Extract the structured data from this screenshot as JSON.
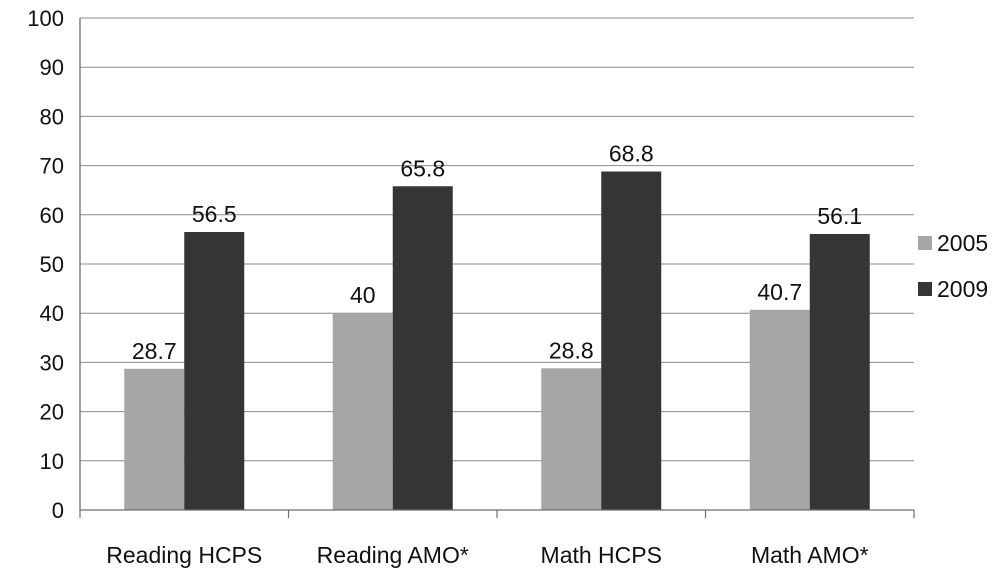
{
  "chart_data": {
    "type": "bar",
    "categories": [
      "Reading HCPS",
      "Reading AMO*",
      "Math HCPS",
      "Math AMO*"
    ],
    "series": [
      {
        "name": "2005",
        "values": [
          28.7,
          40,
          28.8,
          40.7
        ],
        "labels": [
          "28.7",
          "40",
          "28.8",
          "40.7"
        ],
        "color": "#a6a6a6"
      },
      {
        "name": "2009",
        "values": [
          56.5,
          65.8,
          68.8,
          56.1
        ],
        "labels": [
          "56.5",
          "65.8",
          "68.8",
          "56.1"
        ],
        "color": "#353535"
      }
    ],
    "title": "",
    "xlabel": "",
    "ylabel": "",
    "ylim": [
      0,
      100
    ],
    "yticks": [
      "0",
      "10",
      "20",
      "30",
      "40",
      "50",
      "60",
      "70",
      "80",
      "90",
      "100"
    ],
    "grid": true,
    "legend": "right"
  }
}
